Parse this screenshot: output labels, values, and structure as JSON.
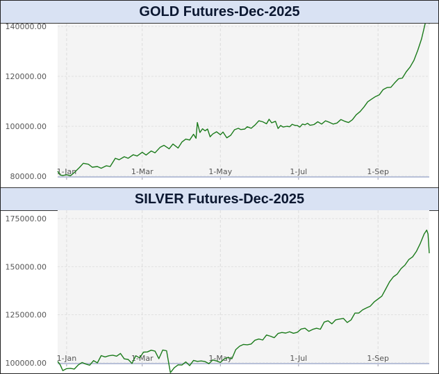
{
  "chart_data": [
    {
      "type": "line",
      "title": "GOLD Futures-Dec-2025",
      "x_ticks": [
        "1-Jan",
        "1-Mar",
        "1-May",
        "1-Jul",
        "1-Sep"
      ],
      "x_tick_positions": [
        0,
        59,
        120,
        181,
        243
      ],
      "y_ticks": [
        "80000.00",
        "100000.00",
        "120000.00",
        "140000.00"
      ],
      "y_tick_values": [
        80000,
        100000,
        120000,
        140000
      ],
      "ylim": [
        80000,
        140000
      ],
      "xlim": [
        -7,
        283
      ],
      "grid": true,
      "line_color": "#1a7a1a",
      "series": [
        {
          "x": [
            -7,
            -5,
            -3,
            0,
            3,
            6,
            10,
            13,
            17,
            20,
            24,
            27,
            31,
            34,
            38,
            41,
            45,
            48,
            52,
            55,
            59,
            62,
            66,
            69,
            73,
            76,
            80,
            83,
            87,
            90,
            93,
            96,
            99,
            101,
            102,
            104,
            106,
            108,
            110,
            112,
            114,
            117,
            120,
            122,
            125,
            128,
            131,
            134,
            136,
            139,
            141,
            144,
            147,
            150,
            153,
            156,
            158,
            160,
            163,
            165,
            167,
            169,
            172,
            174,
            176,
            178,
            180,
            182,
            184,
            186,
            188,
            190,
            193,
            196,
            199,
            202,
            205,
            208,
            211,
            214,
            217,
            220,
            223,
            226,
            229,
            232,
            235,
            238,
            241,
            244,
            247,
            250,
            253,
            256,
            259,
            262,
            265,
            268,
            271,
            274,
            277,
            280,
            282,
            283
          ],
          "y": [
            82000,
            80500,
            80300,
            80600,
            80200,
            81500,
            83500,
            85200,
            84800,
            83600,
            83900,
            83200,
            84200,
            83900,
            87200,
            86600,
            87800,
            87200,
            88600,
            88100,
            89600,
            88500,
            90100,
            89400,
            91600,
            92400,
            91000,
            92900,
            91300,
            93700,
            94900,
            94500,
            96800,
            95200,
            101500,
            97500,
            99000,
            98200,
            98900,
            95800,
            96900,
            97800,
            96600,
            97700,
            95400,
            96400,
            98600,
            99200,
            98700,
            98900,
            99800,
            99200,
            100500,
            102200,
            101800,
            101000,
            102800,
            101400,
            102000,
            99100,
            100300,
            99700,
            100000,
            99800,
            100800,
            100400,
            100300,
            99700,
            100900,
            100600,
            101200,
            100400,
            100700,
            101800,
            100900,
            102200,
            101600,
            100900,
            101300,
            102700,
            102000,
            101500,
            102600,
            104600,
            105900,
            107700,
            109800,
            110900,
            111900,
            112600,
            114700,
            115500,
            115600,
            117400,
            119000,
            119300,
            121800,
            123700,
            126400,
            130400,
            135000,
            141600,
            147800,
            141000
          ]
        }
      ]
    },
    {
      "type": "line",
      "title": "SILVER Futures-Dec-2025",
      "x_ticks": [
        "1-Jan",
        "1-Mar",
        "1-May",
        "1-Jul",
        "1-Sep"
      ],
      "x_tick_positions": [
        0,
        59,
        120,
        181,
        243
      ],
      "y_ticks": [
        "100000.00",
        "125000.00",
        "150000.00",
        "175000.00"
      ],
      "y_tick_values": [
        100000,
        125000,
        150000,
        175000
      ],
      "ylim": [
        100000,
        175000
      ],
      "xlim": [
        -7,
        283
      ],
      "grid": true,
      "line_color": "#1a7a1a",
      "series": [
        {
          "x": [
            -7,
            -5,
            -3,
            0,
            3,
            6,
            9,
            12,
            15,
            18,
            21,
            24,
            27,
            30,
            33,
            36,
            39,
            42,
            45,
            48,
            51,
            54,
            57,
            60,
            63,
            66,
            69,
            72,
            75,
            78,
            81,
            84,
            87,
            90,
            93,
            96,
            99,
            102,
            105,
            108,
            111,
            114,
            117,
            120,
            123,
            126,
            129,
            132,
            135,
            138,
            141,
            144,
            147,
            150,
            153,
            156,
            159,
            162,
            165,
            168,
            171,
            174,
            177,
            180,
            183,
            186,
            189,
            192,
            195,
            198,
            201,
            204,
            207,
            210,
            213,
            216,
            219,
            222,
            225,
            228,
            231,
            234,
            237,
            240,
            243,
            246,
            249,
            252,
            255,
            258,
            261,
            264,
            267,
            270,
            273,
            276,
            279,
            281,
            282,
            283
          ],
          "y": [
            100800,
            99000,
            96000,
            97000,
            97200,
            96800,
            98900,
            100200,
            99400,
            98800,
            101200,
            100000,
            103800,
            103100,
            103700,
            104000,
            103500,
            104900,
            102100,
            101800,
            99700,
            103700,
            102600,
            105600,
            105700,
            106600,
            106100,
            102200,
            106700,
            106300,
            94900,
            97500,
            99000,
            98900,
            100500,
            98600,
            101300,
            100800,
            101000,
            100700,
            99600,
            101500,
            101000,
            100200,
            102100,
            102800,
            102200,
            106900,
            108700,
            109600,
            109400,
            109800,
            111800,
            112400,
            111900,
            114500,
            113900,
            113100,
            115300,
            115800,
            115500,
            116200,
            115400,
            115900,
            117600,
            118000,
            116400,
            117400,
            118000,
            117500,
            121200,
            121900,
            120300,
            122400,
            122800,
            123100,
            121000,
            122400,
            125900,
            125900,
            127600,
            128600,
            129500,
            131700,
            133200,
            134700,
            138400,
            142100,
            144700,
            146200,
            149000,
            150800,
            153700,
            155100,
            158000,
            162100,
            167000,
            169000,
            167000,
            157000
          ]
        }
      ]
    }
  ]
}
